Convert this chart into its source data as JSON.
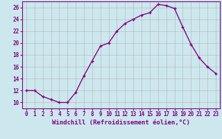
{
  "x": [
    0,
    1,
    2,
    3,
    4,
    5,
    6,
    7,
    8,
    9,
    10,
    11,
    12,
    13,
    14,
    15,
    16,
    17,
    18,
    19,
    20,
    21,
    22,
    23
  ],
  "y": [
    12,
    12,
    11,
    10.5,
    10,
    10,
    11.7,
    14.5,
    17,
    19.5,
    20,
    22,
    23.3,
    24,
    24.7,
    25.1,
    26.5,
    26.3,
    25.8,
    22.7,
    19.8,
    17.5,
    16,
    14.9
  ],
  "line_color": "#800080",
  "marker": "+",
  "bg_color": "#cce8ee",
  "grid_color": "#bbbbbb",
  "xlabel": "Windchill (Refroidissement éolien,°C)",
  "xlim": [
    -0.5,
    23.5
  ],
  "ylim": [
    9.0,
    27.0
  ],
  "yticks": [
    10,
    12,
    14,
    16,
    18,
    20,
    22,
    24,
    26
  ],
  "xticks": [
    0,
    1,
    2,
    3,
    4,
    5,
    6,
    7,
    8,
    9,
    10,
    11,
    12,
    13,
    14,
    15,
    16,
    17,
    18,
    19,
    20,
    21,
    22,
    23
  ],
  "tick_color": "#800080",
  "label_color": "#800080",
  "tick_size": 5.5,
  "xlabel_size": 6.5,
  "line_width": 1.0,
  "marker_size": 3.5,
  "marker_ew": 1.0
}
